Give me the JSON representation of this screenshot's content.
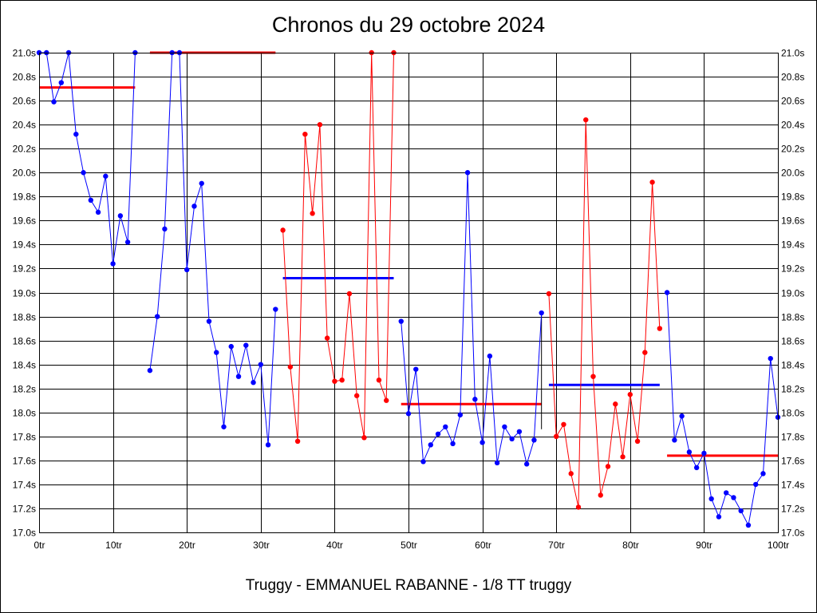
{
  "chart_data": {
    "type": "line",
    "title": "Chronos du 29 octobre 2024",
    "subtitle": "Truggy - EMMANUEL RABANNE - 1/8 TT truggy",
    "xlabel": "",
    "ylabel": "",
    "xlim": [
      0,
      100
    ],
    "ylim": [
      17.0,
      21.0
    ],
    "grid": true,
    "x_ticks": [
      {
        "value": 0,
        "label": "0tr"
      },
      {
        "value": 10,
        "label": "10tr"
      },
      {
        "value": 20,
        "label": "20tr"
      },
      {
        "value": 30,
        "label": "30tr"
      },
      {
        "value": 40,
        "label": "40tr"
      },
      {
        "value": 50,
        "label": "50tr"
      },
      {
        "value": 60,
        "label": "60tr"
      },
      {
        "value": 70,
        "label": "70tr"
      },
      {
        "value": 80,
        "label": "80tr"
      },
      {
        "value": 90,
        "label": "90tr"
      },
      {
        "value": 100,
        "label": "100tr"
      }
    ],
    "y_ticks": [
      {
        "value": 17.0,
        "label": "17.0s"
      },
      {
        "value": 17.2,
        "label": "17.2s"
      },
      {
        "value": 17.4,
        "label": "17.4s"
      },
      {
        "value": 17.6,
        "label": "17.6s"
      },
      {
        "value": 17.8,
        "label": "17.8s"
      },
      {
        "value": 18.0,
        "label": "18.0s"
      },
      {
        "value": 18.2,
        "label": "18.2s"
      },
      {
        "value": 18.4,
        "label": "18.4s"
      },
      {
        "value": 18.6,
        "label": "18.6s"
      },
      {
        "value": 18.8,
        "label": "18.8s"
      },
      {
        "value": 19.0,
        "label": "19.0s"
      },
      {
        "value": 19.2,
        "label": "19.2s"
      },
      {
        "value": 19.4,
        "label": "19.4s"
      },
      {
        "value": 19.6,
        "label": "19.6s"
      },
      {
        "value": 19.8,
        "label": "19.8s"
      },
      {
        "value": 20.0,
        "label": "20.0s"
      },
      {
        "value": 20.2,
        "label": "20.2s"
      },
      {
        "value": 20.4,
        "label": "20.4s"
      },
      {
        "value": 20.6,
        "label": "20.6s"
      },
      {
        "value": 20.8,
        "label": "20.8s"
      },
      {
        "value": 21.0,
        "label": "21.0s"
      }
    ],
    "series": [
      {
        "color": "#0000ff",
        "x": [
          0,
          1,
          2,
          3,
          4,
          5,
          6,
          7,
          8,
          9,
          10,
          11,
          12,
          13
        ],
        "values": [
          21.0,
          21.0,
          20.59,
          20.75,
          21.0,
          20.32,
          20.0,
          19.77,
          19.67,
          19.97,
          19.24,
          19.64,
          19.42,
          21.0
        ]
      },
      {
        "color": "#0000ff",
        "x": [
          15,
          16,
          17,
          18,
          19,
          20,
          21,
          22,
          23,
          24,
          25,
          26,
          27,
          28,
          29,
          30,
          31,
          32
        ],
        "values": [
          18.35,
          18.8,
          19.53,
          21.0,
          21.0,
          19.19,
          19.72,
          19.91,
          18.76,
          18.5,
          17.88,
          18.55,
          18.3,
          18.56,
          18.25,
          18.4,
          17.73,
          18.86
        ]
      },
      {
        "color": "#ff0000",
        "x": [
          33,
          34,
          35,
          36,
          37,
          38,
          39,
          40,
          41,
          42,
          43,
          44,
          45,
          46,
          47,
          48
        ],
        "values": [
          19.52,
          18.38,
          17.76,
          20.32,
          19.66,
          20.4,
          18.62,
          18.26,
          18.27,
          18.99,
          18.14,
          17.79,
          21.0,
          18.27,
          18.1,
          21.0
        ]
      },
      {
        "color": "#0000ff",
        "x": [
          49,
          50,
          51,
          52,
          53,
          54,
          55,
          56,
          57,
          58,
          59,
          60,
          61,
          62,
          63,
          64,
          65,
          66,
          67,
          68
        ],
        "values": [
          18.76,
          17.99,
          18.36,
          17.59,
          17.73,
          17.82,
          17.88,
          17.74,
          17.98,
          20.0,
          18.11,
          17.75,
          18.47,
          17.58,
          17.88,
          17.78,
          17.84,
          17.57,
          17.77,
          18.83
        ]
      },
      {
        "color": "#ff0000",
        "x": [
          69,
          70,
          71,
          72,
          73,
          74,
          75,
          76,
          77,
          78,
          79,
          80,
          81,
          82,
          83,
          84
        ],
        "values": [
          18.99,
          17.8,
          17.9,
          17.49,
          17.21,
          20.44,
          18.3,
          17.31,
          17.55,
          18.07,
          17.63,
          18.15,
          17.76,
          18.5,
          19.92,
          18.7
        ]
      },
      {
        "color": "#0000ff",
        "x": [
          85,
          86,
          87,
          88,
          89,
          90,
          91,
          92,
          93,
          94,
          95,
          96,
          97,
          98,
          99,
          100
        ],
        "values": [
          19.0,
          17.77,
          17.97,
          17.67,
          17.54,
          17.66,
          17.28,
          17.13,
          17.33,
          17.29,
          17.18,
          17.06,
          17.4,
          17.49,
          18.45,
          17.96
        ]
      }
    ],
    "average_lines": [
      {
        "color": "#ff0000",
        "x": [
          0,
          13
        ],
        "value": 20.71
      },
      {
        "color": "#ff0000",
        "x": [
          15,
          32
        ],
        "value": 21.0
      },
      {
        "color": "#0000ff",
        "x": [
          33,
          48
        ],
        "value": 19.12
      },
      {
        "color": "#ff0000",
        "x": [
          49,
          68
        ],
        "value": 18.07
      },
      {
        "color": "#0000ff",
        "x": [
          69,
          84
        ],
        "value": 18.23
      },
      {
        "color": "#ff0000",
        "x": [
          85,
          100
        ],
        "value": 17.64
      }
    ],
    "separators": [
      {
        "x": 68,
        "from": 18.83,
        "to": 17.86
      }
    ]
  }
}
